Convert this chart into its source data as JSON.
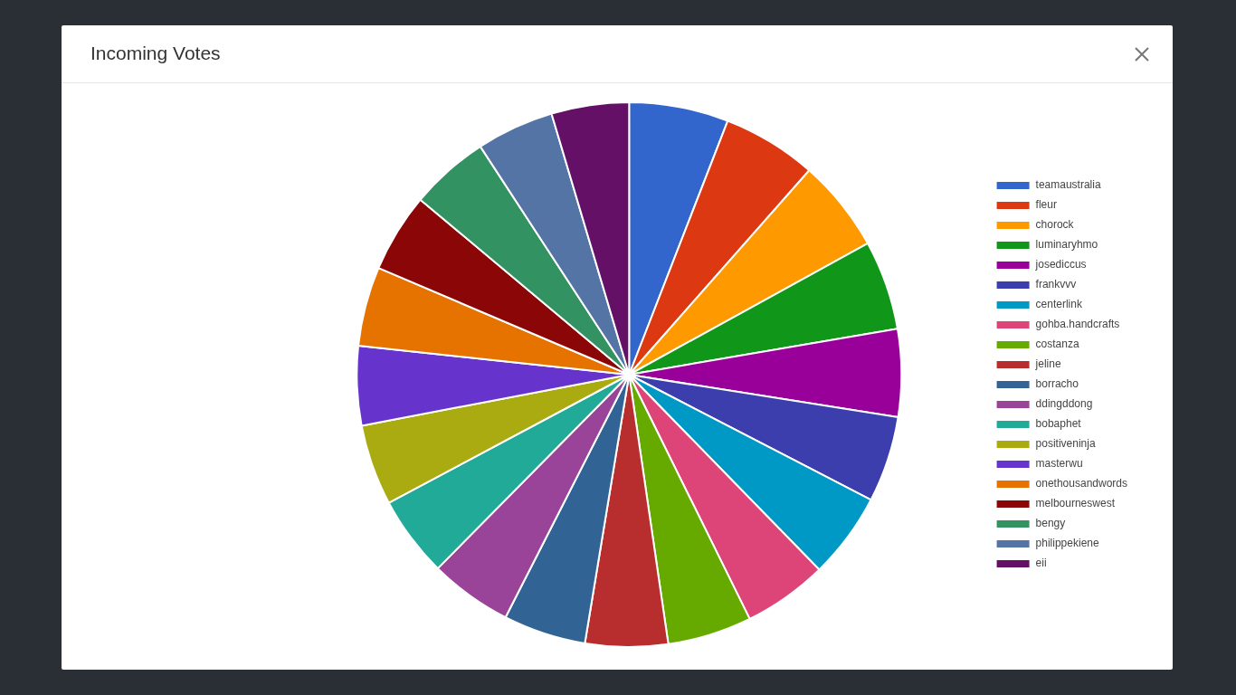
{
  "chart_data": {
    "type": "pie",
    "title": "Incoming Votes",
    "categories": [
      "teamaustralia",
      "fleur",
      "chorock",
      "luminaryhmo",
      "josediccus",
      "frankvvv",
      "centerlink",
      "gohba.handcrafts",
      "costanza",
      "jeline",
      "borracho",
      "ddingddong",
      "bobaphet",
      "positiveninja",
      "masterwu",
      "onethousandwords",
      "melbourneswest",
      "bengy",
      "philippekiene",
      "eii"
    ],
    "values": [
      5.9,
      5.6,
      5.5,
      5.3,
      5.2,
      5.1,
      5.1,
      5.0,
      5.0,
      4.9,
      4.9,
      4.9,
      4.8,
      4.8,
      4.7,
      4.7,
      4.7,
      4.7,
      4.6,
      4.6
    ],
    "colors": [
      "#3366cc",
      "#dc3912",
      "#ff9900",
      "#109618",
      "#990099",
      "#3b3eac",
      "#0099c6",
      "#dd4477",
      "#66aa00",
      "#b82e2e",
      "#316395",
      "#994499",
      "#22aa99",
      "#aaaa11",
      "#6633cc",
      "#e67300",
      "#8b0707",
      "#329262",
      "#5574a6",
      "#651067"
    ],
    "legend": "right"
  }
}
